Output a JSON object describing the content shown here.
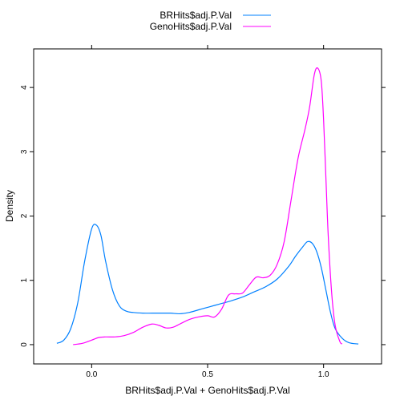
{
  "chart_data": {
    "type": "line",
    "title": "",
    "xlabel": "BRHits$adj.P.Val + GenoHits$adj.P.Val",
    "ylabel": "Density",
    "xlim": [
      -0.25,
      1.25
    ],
    "ylim": [
      -0.3,
      4.6
    ],
    "x_ticks": [
      0.0,
      0.5,
      1.0
    ],
    "x_tick_labels": [
      "0.0",
      "0.5",
      "1.0"
    ],
    "y_ticks": [
      0,
      1,
      2,
      3,
      4
    ],
    "y_tick_labels": [
      "0",
      "1",
      "2",
      "3",
      "4"
    ],
    "grid": false,
    "legend_position": "top",
    "series": [
      {
        "name": "BRHits$adj.P.Val",
        "color": "#0080ff",
        "x": [
          -0.15,
          -0.12,
          -0.09,
          -0.06,
          -0.03,
          0.0,
          0.02,
          0.04,
          0.06,
          0.09,
          0.12,
          0.15,
          0.18,
          0.22,
          0.26,
          0.3,
          0.34,
          0.38,
          0.42,
          0.46,
          0.5,
          0.55,
          0.6,
          0.65,
          0.7,
          0.75,
          0.8,
          0.85,
          0.88,
          0.91,
          0.93,
          0.95,
          0.97,
          0.99,
          1.01,
          1.03,
          1.05,
          1.08,
          1.11,
          1.15
        ],
        "y": [
          0.02,
          0.07,
          0.25,
          0.65,
          1.3,
          1.8,
          1.86,
          1.7,
          1.3,
          0.85,
          0.6,
          0.52,
          0.5,
          0.49,
          0.49,
          0.49,
          0.49,
          0.48,
          0.5,
          0.54,
          0.58,
          0.63,
          0.68,
          0.74,
          0.82,
          0.9,
          1.02,
          1.22,
          1.38,
          1.52,
          1.6,
          1.58,
          1.45,
          1.2,
          0.85,
          0.5,
          0.25,
          0.1,
          0.03,
          0.01
        ]
      },
      {
        "name": "GenoHits$adj.P.Val",
        "color": "#ff00ff",
        "x": [
          -0.08,
          -0.04,
          0.0,
          0.03,
          0.06,
          0.1,
          0.14,
          0.18,
          0.22,
          0.26,
          0.29,
          0.32,
          0.35,
          0.38,
          0.42,
          0.46,
          0.5,
          0.53,
          0.56,
          0.59,
          0.62,
          0.65,
          0.68,
          0.71,
          0.74,
          0.77,
          0.8,
          0.83,
          0.86,
          0.89,
          0.92,
          0.94,
          0.96,
          0.975,
          0.99,
          1.0,
          1.01,
          1.02,
          1.035,
          1.05,
          1.07,
          1.08
        ],
        "y": [
          0.0,
          0.02,
          0.07,
          0.11,
          0.12,
          0.12,
          0.14,
          0.19,
          0.27,
          0.32,
          0.3,
          0.26,
          0.27,
          0.32,
          0.39,
          0.43,
          0.45,
          0.43,
          0.55,
          0.77,
          0.79,
          0.8,
          0.93,
          1.05,
          1.04,
          1.08,
          1.25,
          1.6,
          2.25,
          2.9,
          3.35,
          3.7,
          4.2,
          4.3,
          4.1,
          3.5,
          2.6,
          1.7,
          0.8,
          0.3,
          0.05,
          0.01
        ]
      }
    ]
  }
}
